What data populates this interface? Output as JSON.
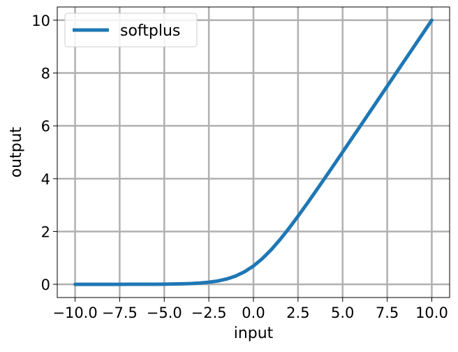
{
  "chart_data": {
    "type": "line",
    "title": "",
    "xlabel": "input",
    "ylabel": "output",
    "xlim": [
      -11.0,
      11.0
    ],
    "ylim": [
      -0.5,
      10.5
    ],
    "xticks": [
      -10.0,
      -7.5,
      -5.0,
      -2.5,
      0.0,
      2.5,
      5.0,
      7.5,
      10.0
    ],
    "xtick_labels": [
      "−10.0",
      "−7.5",
      "−5.0",
      "−2.5",
      "0.0",
      "2.5",
      "5.0",
      "7.5",
      "10.0"
    ],
    "yticks": [
      0,
      2,
      4,
      6,
      8,
      10
    ],
    "ytick_labels": [
      "0",
      "2",
      "4",
      "6",
      "8",
      "10"
    ],
    "grid": true,
    "grid_color": "#b0b0b0",
    "legend_position": "top-left",
    "series": [
      {
        "name": "softplus",
        "color": "#1f77b4",
        "x": [
          -10.0,
          -9.5,
          -9.0,
          -8.5,
          -8.0,
          -7.5,
          -7.0,
          -6.5,
          -6.0,
          -5.5,
          -5.0,
          -4.5,
          -4.0,
          -3.5,
          -3.0,
          -2.5,
          -2.0,
          -1.5,
          -1.0,
          -0.5,
          0.0,
          0.5,
          1.0,
          1.5,
          2.0,
          2.5,
          3.0,
          3.5,
          4.0,
          4.5,
          5.0,
          5.5,
          6.0,
          6.5,
          7.0,
          7.5,
          8.0,
          8.5,
          9.0,
          9.5,
          10.0
        ],
        "y": [
          5e-05,
          7e-05,
          0.00012,
          0.0002,
          0.00034,
          0.00055,
          0.00091,
          0.0015,
          0.00248,
          0.00408,
          0.00672,
          0.01105,
          0.01815,
          0.02975,
          0.04859,
          0.07889,
          0.12693,
          0.20141,
          0.31326,
          0.47408,
          0.69315,
          0.97408,
          1.31326,
          1.70141,
          2.12693,
          2.57889,
          3.04859,
          3.52975,
          4.01815,
          4.51105,
          5.00672,
          5.50408,
          6.00248,
          6.5015,
          7.00091,
          7.50055,
          8.00034,
          8.5002,
          9.00012,
          9.50007,
          10.00005
        ]
      }
    ]
  }
}
